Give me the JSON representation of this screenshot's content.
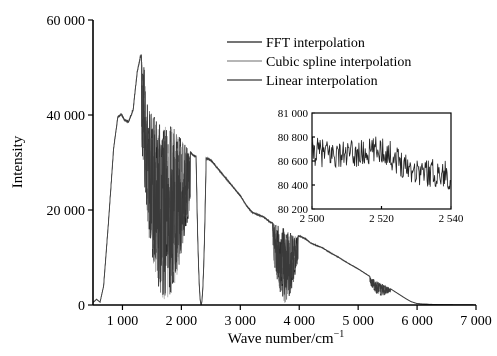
{
  "chart_data": {
    "type": "line",
    "xlabel": "Wave number/cm",
    "xlabel_superscript": "−1",
    "ylabel": "Intensity",
    "xlim": [
      500,
      7000
    ],
    "ylim": [
      0,
      60000
    ],
    "xticks": [
      1000,
      2000,
      3000,
      4000,
      5000,
      6000,
      7000
    ],
    "xtick_labels": [
      "1 000",
      "2 000",
      "3 000",
      "4 000",
      "5 000",
      "6 000",
      "7 000"
    ],
    "yticks": [
      0,
      20000,
      40000,
      60000
    ],
    "ytick_labels": [
      "0",
      "20 000",
      "40 000",
      "60 000"
    ],
    "legend_position": "top-right",
    "series": [
      {
        "name": "FFT interpolation",
        "color": "#222222"
      },
      {
        "name": "Cubic spline interpolation",
        "color": "#8a8a8a"
      },
      {
        "name": "Linear interpolation",
        "color": "#3a3a3a"
      }
    ],
    "envelope": {
      "x": [
        500,
        560,
        620,
        680,
        760,
        850,
        920,
        980,
        1030,
        1100,
        1180,
        1250,
        1300,
        1340,
        1370,
        1410,
        1450,
        1520,
        1600,
        1700,
        1800,
        1900,
        2000,
        2100,
        2200,
        2280,
        2330,
        2400,
        2500,
        2600,
        2700,
        2800,
        2900,
        3000,
        3100,
        3200,
        3300,
        3400,
        3500,
        3600,
        3700,
        3800,
        3900,
        4000,
        4100,
        4200,
        4300,
        4400,
        4500,
        4600,
        4700,
        4800,
        4900,
        5000,
        5100,
        5200,
        5300,
        5400,
        5500,
        5600,
        5700,
        5800,
        5900,
        6000,
        6200,
        6500,
        7000
      ],
      "y": [
        500,
        1200,
        600,
        4000,
        17000,
        33000,
        39500,
        40200,
        39000,
        38500,
        41000,
        49000,
        52000,
        53500,
        50000,
        43000,
        41000,
        40000,
        38500,
        38000,
        38000,
        37000,
        35000,
        33000,
        31500,
        31000,
        31500,
        31000,
        30500,
        29000,
        27500,
        26000,
        24500,
        23000,
        21000,
        19500,
        19000,
        18500,
        17500,
        17000,
        16500,
        15500,
        15000,
        14500,
        14000,
        13000,
        12500,
        12000,
        11200,
        10500,
        9800,
        9000,
        8300,
        7600,
        6800,
        6000,
        5200,
        4500,
        3800,
        3000,
        2200,
        1400,
        700,
        300,
        150,
        80,
        50
      ]
    },
    "absorption_bands": [
      {
        "from": 1320,
        "to": 2150,
        "min": 200,
        "density": "dense"
      },
      {
        "from": 2250,
        "to": 2420,
        "min": 100,
        "density": "single"
      },
      {
        "from": 3550,
        "to": 3980,
        "min": 200,
        "density": "dense"
      },
      {
        "from": 5200,
        "to": 5550,
        "min": 800,
        "density": "medium"
      }
    ],
    "inset": {
      "type": "line",
      "xlim": [
        2500,
        2540
      ],
      "ylim": [
        80200,
        81000
      ],
      "xticks": [
        2500,
        2520,
        2540
      ],
      "xtick_labels": [
        "2 500",
        "2 520",
        "2 540"
      ],
      "yticks": [
        80200,
        80400,
        80600,
        80800,
        81000
      ],
      "ytick_labels": [
        "80 200",
        "80 400",
        "80 600",
        "80 800",
        "81 000"
      ],
      "trend": {
        "x": [
          2500,
          2505,
          2510,
          2515,
          2520,
          2525,
          2530,
          2535,
          2540
        ],
        "y": [
          80680,
          80660,
          80650,
          80660,
          80700,
          80600,
          80520,
          80500,
          80480
        ]
      },
      "noise_amplitude": 120
    }
  }
}
